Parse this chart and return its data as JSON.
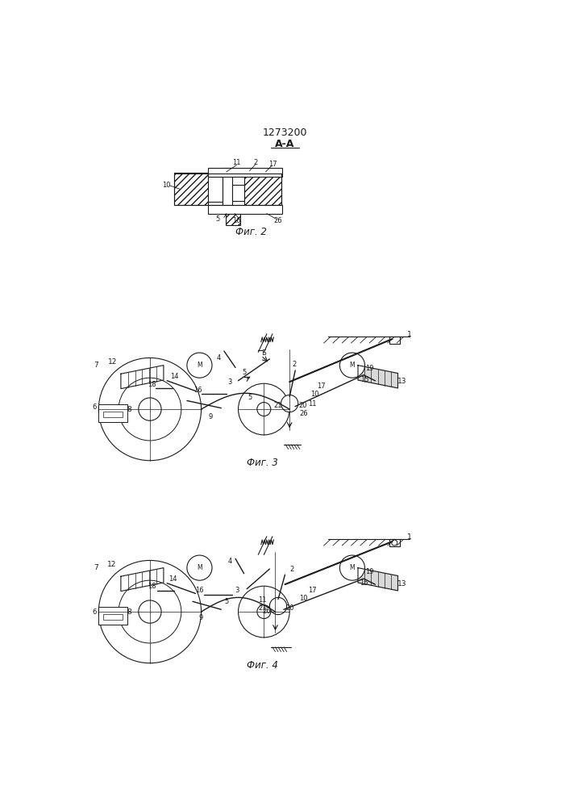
{
  "title": "1273200",
  "fig2_label": "Фиг. 2",
  "fig3_label": "Фиг. 3",
  "fig4_label": "Фиг. 4",
  "section_label": "A-A",
  "bg_color": "#ffffff",
  "line_color": "#1a1a1a"
}
